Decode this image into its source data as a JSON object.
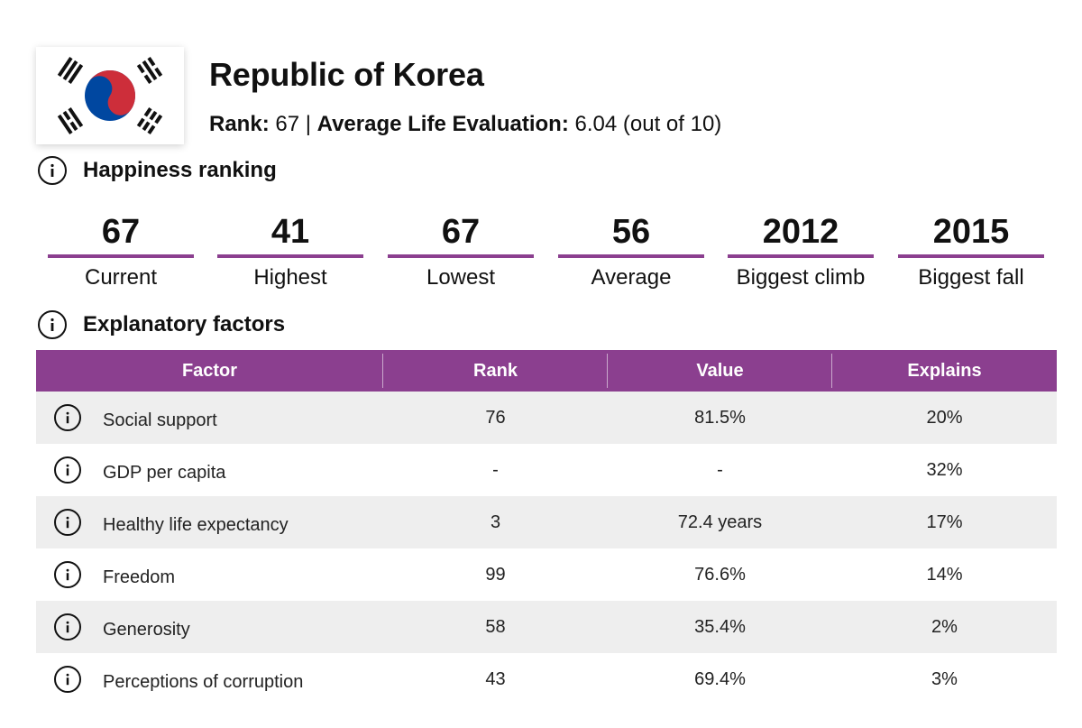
{
  "country": {
    "name": "Republic of Korea",
    "rank_label": "Rank:",
    "rank": "67",
    "separator": "|",
    "ale_label": "Average Life Evaluation:",
    "ale_value": "6.04",
    "ale_suffix": "(out of 10)",
    "flag_icon": "south-korea-flag-icon"
  },
  "colors": {
    "accent": "#8b3f8f",
    "row_shade": "#eeeeee",
    "flag_red": "#cd2e3a",
    "flag_blue": "#0047a0"
  },
  "happiness": {
    "title": "Happiness ranking",
    "stats": [
      {
        "value": "67",
        "label": "Current"
      },
      {
        "value": "41",
        "label": "Highest"
      },
      {
        "value": "67",
        "label": "Lowest"
      },
      {
        "value": "56",
        "label": "Average"
      },
      {
        "value": "2012",
        "label": "Biggest climb"
      },
      {
        "value": "2015",
        "label": "Biggest fall"
      }
    ]
  },
  "factors": {
    "title": "Explanatory factors",
    "headers": [
      "Factor",
      "Rank",
      "Value",
      "Explains"
    ],
    "rows": [
      {
        "factor": "Social support",
        "rank": "76",
        "value": "81.5%",
        "explains": "20%"
      },
      {
        "factor": "GDP per capita",
        "rank": "-",
        "value": "-",
        "explains": "32%"
      },
      {
        "factor": "Healthy life expectancy",
        "rank": "3",
        "value": "72.4 years",
        "explains": "17%"
      },
      {
        "factor": "Freedom",
        "rank": "99",
        "value": "76.6%",
        "explains": "14%"
      },
      {
        "factor": "Generosity",
        "rank": "58",
        "value": "35.4%",
        "explains": "2%"
      },
      {
        "factor": "Perceptions of corruption",
        "rank": "43",
        "value": "69.4%",
        "explains": "3%"
      }
    ]
  }
}
